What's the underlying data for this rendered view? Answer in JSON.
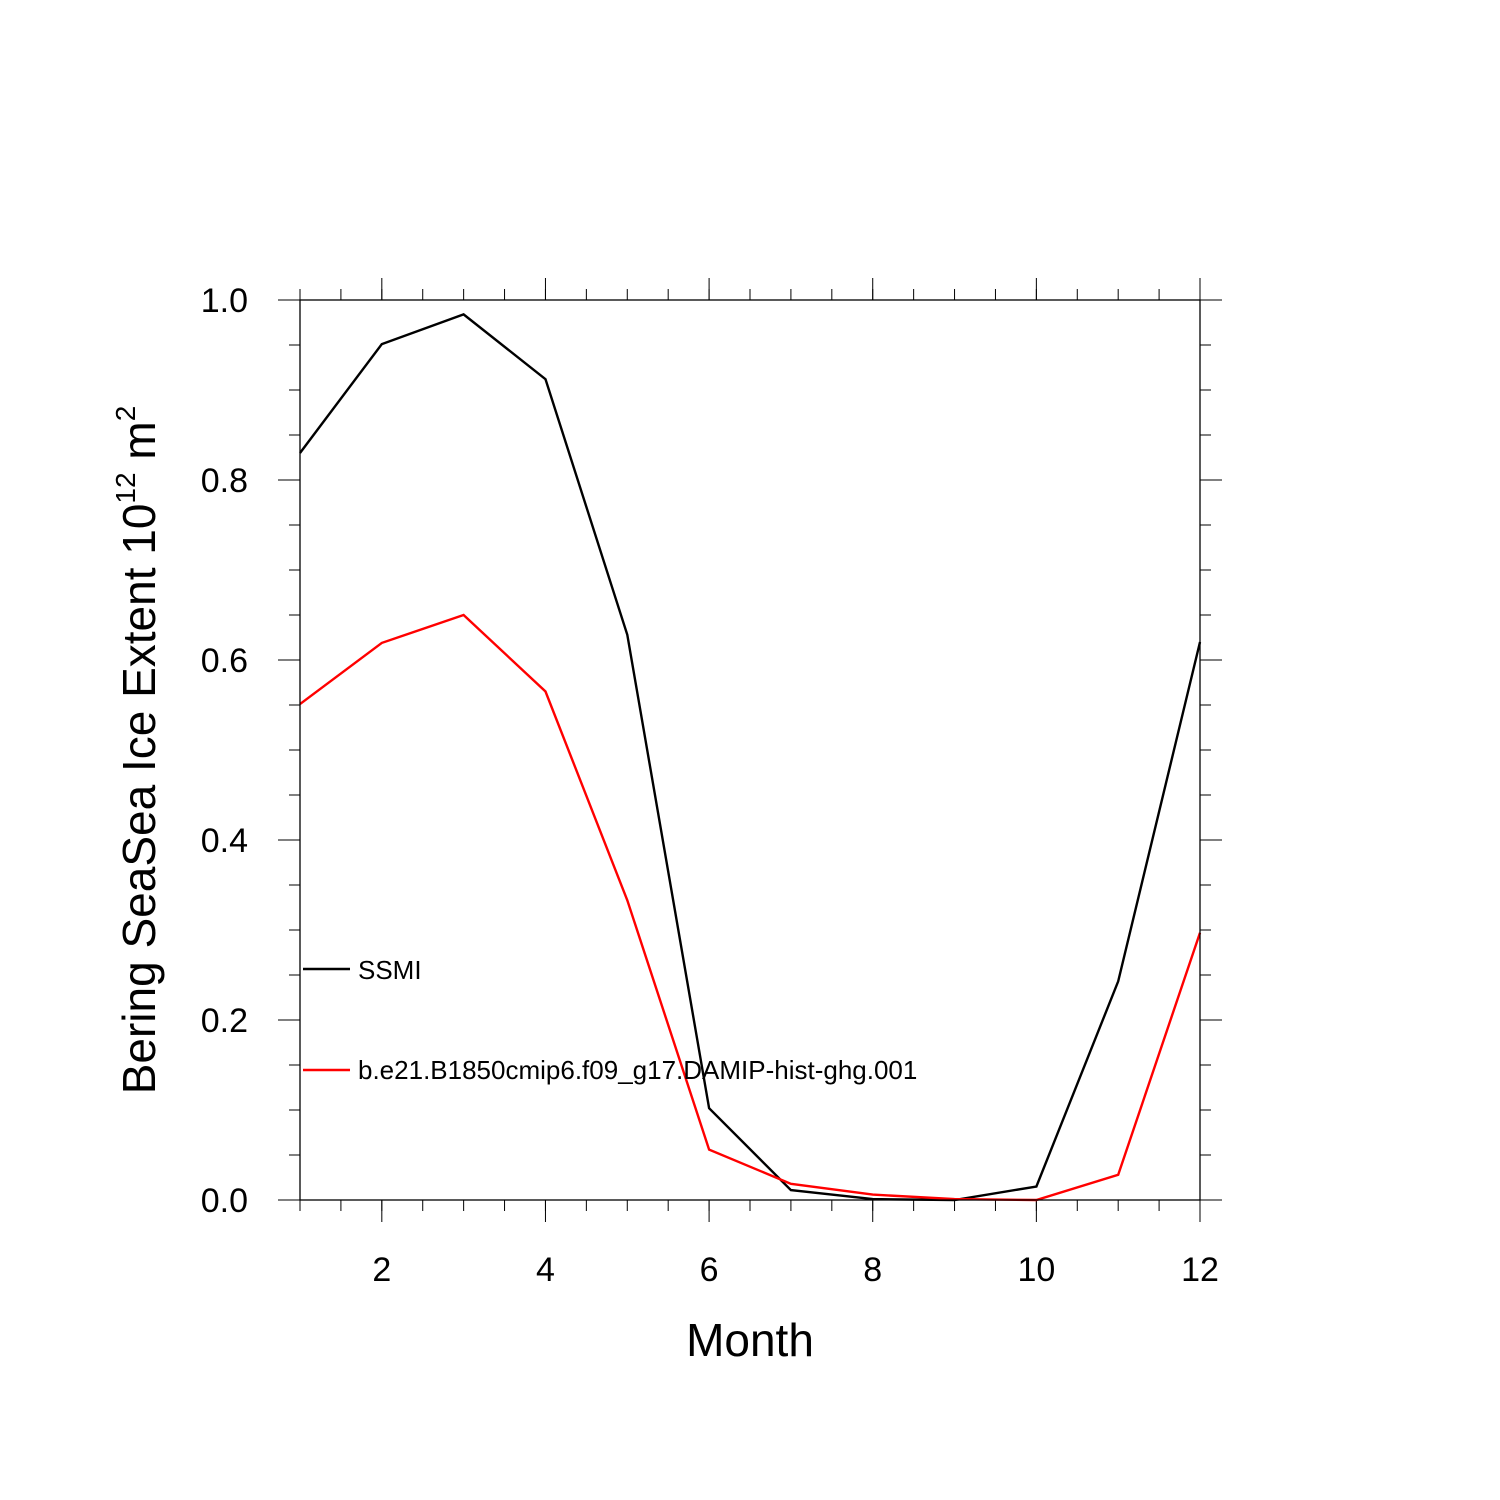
{
  "chart_data": {
    "type": "line",
    "title": "",
    "xlabel": "Month",
    "ylabel": {
      "base": "Bering SeaSea Ice Extent 10",
      "sup1": "12",
      "mid": " m",
      "sup2": "2"
    },
    "xlim": [
      1,
      12
    ],
    "ylim": [
      0,
      1
    ],
    "x": [
      1,
      2,
      3,
      4,
      5,
      6,
      7,
      8,
      9,
      10,
      11,
      12
    ],
    "xticks": [
      2,
      4,
      6,
      8,
      10,
      12
    ],
    "xtick_labels": [
      "2",
      "4",
      "6",
      "8",
      "10",
      "12"
    ],
    "yticks": [
      0,
      0.2,
      0.4,
      0.6,
      0.8,
      1.0
    ],
    "ytick_labels": [
      "0.0",
      "0.2",
      "0.4",
      "0.6",
      "0.8",
      "1.0"
    ],
    "grid": false,
    "legend_placement": "left, lower-middle inside plot",
    "series": [
      {
        "name": "SSMI",
        "color": "#000000",
        "values": [
          0.83,
          0.951,
          0.984,
          0.912,
          0.628,
          0.102,
          0.011,
          0.001,
          0.0,
          0.015,
          0.243,
          0.62
        ]
      },
      {
        "name": "b.e21.B1850cmip6.f09_g17.DAMIP-hist-ghg.001",
        "color": "#ff0000",
        "values": [
          0.551,
          0.619,
          0.65,
          0.565,
          0.333,
          0.056,
          0.018,
          0.006,
          0.001,
          0.0,
          0.028,
          0.297
        ]
      }
    ]
  }
}
